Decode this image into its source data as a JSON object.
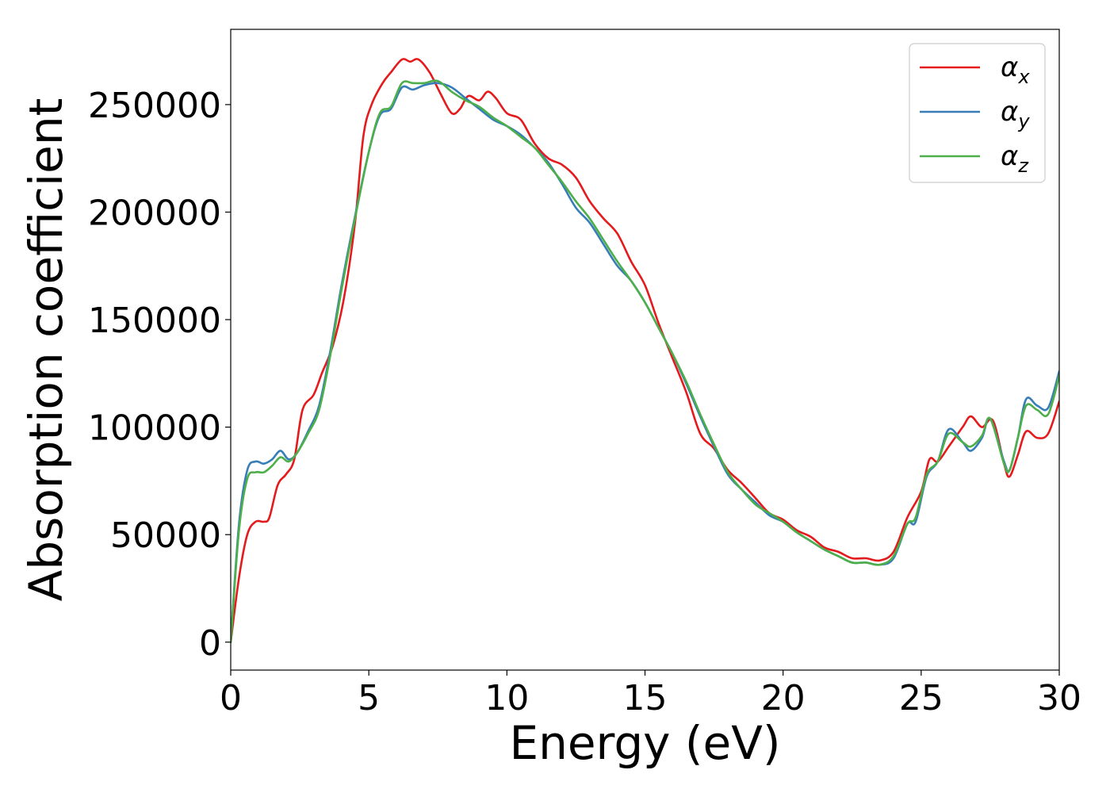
{
  "chart_data": {
    "type": "line",
    "title": "",
    "xlabel": "Energy (eV)",
    "ylabel": "Absorption coefficient",
    "xlim": [
      0,
      30
    ],
    "ylim": [
      -13000,
      285000
    ],
    "xticks": [
      0,
      5,
      10,
      15,
      20,
      25,
      30
    ],
    "yticks": [
      0,
      50000,
      100000,
      150000,
      200000,
      250000
    ],
    "grid": false,
    "legend_position": "top-right",
    "series": [
      {
        "name": "α_x",
        "legend_symbol": "α",
        "legend_subscript": "x",
        "color": "#e41a1c",
        "points": [
          [
            0,
            0
          ],
          [
            0.3,
            30000
          ],
          [
            0.6,
            50000
          ],
          [
            0.9,
            56000
          ],
          [
            1.2,
            56000
          ],
          [
            1.4,
            58000
          ],
          [
            1.7,
            73000
          ],
          [
            2,
            78000
          ],
          [
            2.3,
            85000
          ],
          [
            2.6,
            108000
          ],
          [
            3,
            115000
          ],
          [
            3.3,
            125000
          ],
          [
            3.7,
            138000
          ],
          [
            4.1,
            160000
          ],
          [
            4.5,
            195000
          ],
          [
            4.8,
            235000
          ],
          [
            5.1,
            250000
          ],
          [
            5.5,
            260000
          ],
          [
            5.8,
            265000
          ],
          [
            6.2,
            271000
          ],
          [
            6.5,
            270000
          ],
          [
            6.8,
            271000
          ],
          [
            7.2,
            265000
          ],
          [
            7.6,
            255000
          ],
          [
            8,
            246000
          ],
          [
            8.3,
            248000
          ],
          [
            8.6,
            254000
          ],
          [
            9,
            252000
          ],
          [
            9.3,
            256000
          ],
          [
            9.6,
            253000
          ],
          [
            10,
            246000
          ],
          [
            10.5,
            243000
          ],
          [
            11,
            232000
          ],
          [
            11.5,
            225000
          ],
          [
            12,
            222000
          ],
          [
            12.5,
            216000
          ],
          [
            13,
            205000
          ],
          [
            13.5,
            197000
          ],
          [
            14,
            190000
          ],
          [
            14.5,
            177000
          ],
          [
            15,
            166000
          ],
          [
            15.5,
            148000
          ],
          [
            16,
            132000
          ],
          [
            16.5,
            116000
          ],
          [
            17,
            97000
          ],
          [
            17.5,
            90000
          ],
          [
            18,
            80000
          ],
          [
            18.5,
            74000
          ],
          [
            19,
            67000
          ],
          [
            19.5,
            60000
          ],
          [
            20,
            57000
          ],
          [
            20.5,
            52000
          ],
          [
            21,
            49000
          ],
          [
            21.5,
            44000
          ],
          [
            22,
            42000
          ],
          [
            22.5,
            39000
          ],
          [
            23,
            39000
          ],
          [
            23.5,
            38000
          ],
          [
            24,
            42000
          ],
          [
            24.5,
            58000
          ],
          [
            25,
            70000
          ],
          [
            25.3,
            85000
          ],
          [
            25.6,
            84000
          ],
          [
            26,
            91000
          ],
          [
            26.5,
            100000
          ],
          [
            26.8,
            105000
          ],
          [
            27.2,
            100000
          ],
          [
            27.6,
            103000
          ],
          [
            28,
            83000
          ],
          [
            28.2,
            77000
          ],
          [
            28.5,
            87000
          ],
          [
            28.8,
            98000
          ],
          [
            29.2,
            95000
          ],
          [
            29.6,
            97000
          ],
          [
            30,
            112000
          ]
        ]
      },
      {
        "name": "α_y",
        "legend_symbol": "α",
        "legend_subscript": "y",
        "color": "#377eb8",
        "points": [
          [
            0,
            0
          ],
          [
            0.3,
            55000
          ],
          [
            0.6,
            80000
          ],
          [
            0.9,
            84000
          ],
          [
            1.2,
            83000
          ],
          [
            1.5,
            85000
          ],
          [
            1.8,
            89000
          ],
          [
            2.1,
            85000
          ],
          [
            2.4,
            88000
          ],
          [
            2.8,
            98000
          ],
          [
            3.2,
            110000
          ],
          [
            3.6,
            135000
          ],
          [
            4,
            165000
          ],
          [
            4.5,
            198000
          ],
          [
            5,
            228000
          ],
          [
            5.4,
            245000
          ],
          [
            5.8,
            248000
          ],
          [
            6.2,
            258000
          ],
          [
            6.6,
            257000
          ],
          [
            7,
            259000
          ],
          [
            7.5,
            260000
          ],
          [
            8,
            258000
          ],
          [
            8.5,
            253000
          ],
          [
            9,
            248000
          ],
          [
            9.5,
            243000
          ],
          [
            10,
            240000
          ],
          [
            10.5,
            236000
          ],
          [
            11,
            230000
          ],
          [
            11.5,
            223000
          ],
          [
            12,
            213000
          ],
          [
            12.5,
            202000
          ],
          [
            13,
            195000
          ],
          [
            13.5,
            185000
          ],
          [
            14,
            175000
          ],
          [
            14.5,
            168000
          ],
          [
            15,
            158000
          ],
          [
            15.5,
            146000
          ],
          [
            16,
            134000
          ],
          [
            16.5,
            120000
          ],
          [
            17,
            105000
          ],
          [
            17.5,
            91000
          ],
          [
            18,
            78000
          ],
          [
            18.5,
            71000
          ],
          [
            19,
            65000
          ],
          [
            19.5,
            59000
          ],
          [
            20,
            56000
          ],
          [
            20.5,
            51000
          ],
          [
            21,
            47000
          ],
          [
            21.5,
            43000
          ],
          [
            22,
            40000
          ],
          [
            22.5,
            37000
          ],
          [
            23,
            37000
          ],
          [
            23.5,
            36000
          ],
          [
            24,
            39000
          ],
          [
            24.5,
            55000
          ],
          [
            24.8,
            56000
          ],
          [
            25.2,
            77000
          ],
          [
            25.6,
            84000
          ],
          [
            26,
            99000
          ],
          [
            26.5,
            93000
          ],
          [
            26.8,
            89000
          ],
          [
            27.2,
            95000
          ],
          [
            27.5,
            104000
          ],
          [
            28,
            84000
          ],
          [
            28.2,
            80000
          ],
          [
            28.5,
            95000
          ],
          [
            28.8,
            113000
          ],
          [
            29.2,
            110000
          ],
          [
            29.6,
            109000
          ],
          [
            30,
            126000
          ]
        ]
      },
      {
        "name": "α_z",
        "legend_symbol": "α",
        "legend_subscript": "z",
        "color": "#4daf4a",
        "points": [
          [
            0,
            0
          ],
          [
            0.3,
            52000
          ],
          [
            0.6,
            76000
          ],
          [
            0.9,
            79000
          ],
          [
            1.2,
            79000
          ],
          [
            1.5,
            82000
          ],
          [
            1.8,
            86000
          ],
          [
            2.1,
            84000
          ],
          [
            2.4,
            88000
          ],
          [
            2.8,
            97000
          ],
          [
            3.2,
            108000
          ],
          [
            3.6,
            133000
          ],
          [
            4,
            163000
          ],
          [
            4.5,
            197000
          ],
          [
            5,
            228000
          ],
          [
            5.4,
            246000
          ],
          [
            5.8,
            249000
          ],
          [
            6.2,
            260000
          ],
          [
            6.6,
            260000
          ],
          [
            7,
            260000
          ],
          [
            7.5,
            261000
          ],
          [
            8,
            256000
          ],
          [
            8.5,
            252000
          ],
          [
            9,
            249000
          ],
          [
            9.5,
            244000
          ],
          [
            10,
            240000
          ],
          [
            10.5,
            235000
          ],
          [
            11,
            230000
          ],
          [
            11.5,
            222000
          ],
          [
            12,
            214000
          ],
          [
            12.5,
            205000
          ],
          [
            13,
            197000
          ],
          [
            13.5,
            187000
          ],
          [
            14,
            177000
          ],
          [
            14.5,
            168000
          ],
          [
            15,
            158000
          ],
          [
            15.5,
            146000
          ],
          [
            16,
            134000
          ],
          [
            16.5,
            121000
          ],
          [
            17,
            106000
          ],
          [
            17.5,
            92000
          ],
          [
            18,
            79000
          ],
          [
            18.5,
            71000
          ],
          [
            19,
            64000
          ],
          [
            19.5,
            60000
          ],
          [
            20,
            56000
          ],
          [
            20.5,
            51000
          ],
          [
            21,
            47000
          ],
          [
            21.5,
            43000
          ],
          [
            22,
            40000
          ],
          [
            22.5,
            37000
          ],
          [
            23,
            37000
          ],
          [
            23.5,
            36000
          ],
          [
            24,
            40000
          ],
          [
            24.5,
            55000
          ],
          [
            24.8,
            58000
          ],
          [
            25.2,
            78000
          ],
          [
            25.6,
            84000
          ],
          [
            26,
            97000
          ],
          [
            26.5,
            93000
          ],
          [
            26.8,
            91000
          ],
          [
            27.2,
            96000
          ],
          [
            27.5,
            104000
          ],
          [
            28,
            83000
          ],
          [
            28.2,
            80000
          ],
          [
            28.5,
            95000
          ],
          [
            28.8,
            110000
          ],
          [
            29.2,
            108000
          ],
          [
            29.6,
            106000
          ],
          [
            30,
            124000
          ]
        ]
      }
    ]
  }
}
